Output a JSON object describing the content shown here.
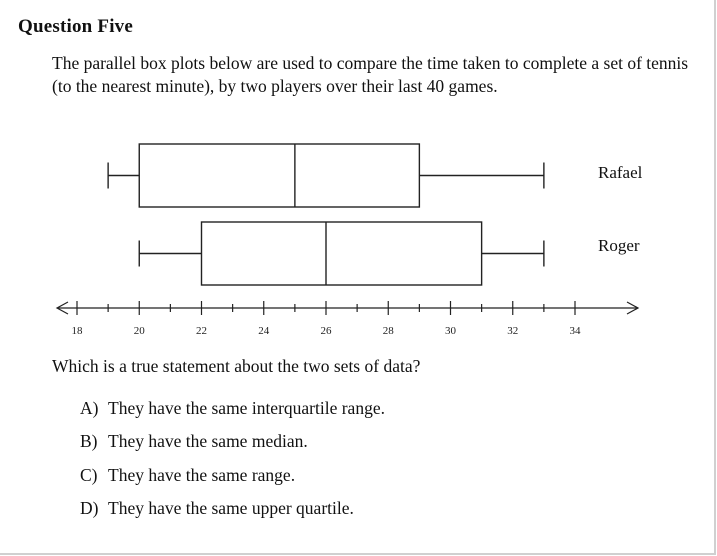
{
  "question": {
    "heading": "Question Five",
    "intro": "The parallel box plots below are used to compare the time taken to complete a set of tennis (to the nearest minute), by two players over their last 40 games.",
    "prompt": "Which is a true statement about the two sets of data?",
    "options": [
      {
        "letter": "A)",
        "text": "They have the same interquartile range."
      },
      {
        "letter": "B)",
        "text": "They have the same median."
      },
      {
        "letter": "C)",
        "text": "They have the same range."
      },
      {
        "letter": "D)",
        "text": "They have the same upper quartile."
      }
    ]
  },
  "chart_data": {
    "type": "boxplot",
    "title": "",
    "xlabel": "",
    "ylabel": "",
    "xlim": [
      17,
      36
    ],
    "tick_labels": [
      18,
      20,
      22,
      24,
      26,
      28,
      30,
      32,
      34
    ],
    "minor_ticks": [
      19,
      21,
      23,
      25,
      27,
      29,
      31,
      33
    ],
    "series": [
      {
        "name": "Rafael",
        "min": 19,
        "q1": 20,
        "median": 25,
        "q3": 29,
        "max": 33
      },
      {
        "name": "Roger",
        "min": 20,
        "q1": 22,
        "median": 26,
        "q3": 31,
        "max": 33
      }
    ],
    "grid": false
  }
}
